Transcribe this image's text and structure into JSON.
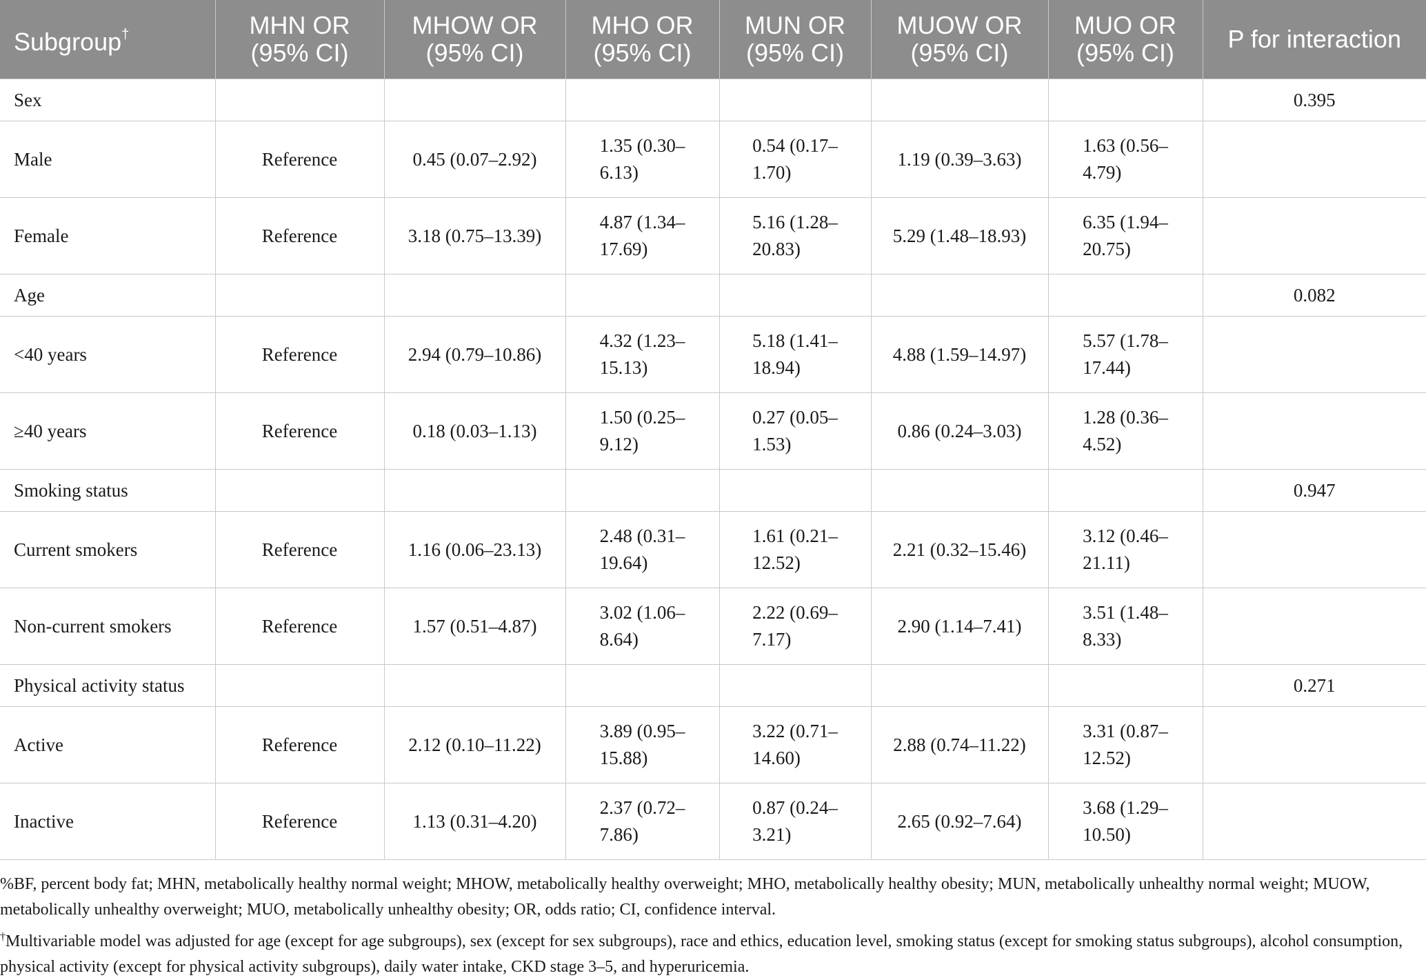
{
  "table": {
    "headers": [
      "Subgroup",
      "MHN OR\n(95% CI)",
      "MHOW OR\n(95% CI)",
      "MHO OR\n(95% CI)",
      "MUN OR\n(95% CI)",
      "MUOW OR\n(95% CI)",
      "MUO OR\n(95% CI)",
      "P for interaction"
    ],
    "subgroup_mark": "†",
    "rows": [
      {
        "type": "category",
        "label": "Sex",
        "p": "0.395"
      },
      {
        "type": "data",
        "label": "Male",
        "values": [
          "Reference",
          "0.45 (0.07–2.92)",
          "1.35 (0.30–\n6.13)",
          "0.54 (0.17–\n1.70)",
          "1.19 (0.39–3.63)",
          "1.63 (0.56–\n4.79)"
        ]
      },
      {
        "type": "data",
        "label": "Female",
        "values": [
          "Reference",
          "3.18 (0.75–13.39)",
          "4.87 (1.34–\n17.69)",
          "5.16 (1.28–\n20.83)",
          "5.29 (1.48–18.93)",
          "6.35 (1.94–\n20.75)"
        ]
      },
      {
        "type": "category",
        "label": "Age",
        "p": "0.082"
      },
      {
        "type": "data",
        "label": "<40 years",
        "values": [
          "Reference",
          "2.94 (0.79–10.86)",
          "4.32 (1.23–\n15.13)",
          "5.18 (1.41–\n18.94)",
          "4.88 (1.59–14.97)",
          "5.57 (1.78–\n17.44)"
        ]
      },
      {
        "type": "data",
        "label": "≥40 years",
        "values": [
          "Reference",
          "0.18 (0.03–1.13)",
          "1.50 (0.25–\n9.12)",
          "0.27 (0.05–\n1.53)",
          "0.86 (0.24–3.03)",
          "1.28 (0.36–\n4.52)"
        ]
      },
      {
        "type": "category",
        "label": "Smoking status",
        "p": "0.947"
      },
      {
        "type": "data",
        "label": "Current smokers",
        "values": [
          "Reference",
          "1.16 (0.06–23.13)",
          "2.48 (0.31–\n19.64)",
          "1.61 (0.21–\n12.52)",
          "2.21 (0.32–15.46)",
          "3.12 (0.46–\n21.11)"
        ]
      },
      {
        "type": "data",
        "label": "Non-current smokers",
        "values": [
          "Reference",
          "1.57 (0.51–4.87)",
          "3.02 (1.06–\n8.64)",
          "2.22 (0.69–\n7.17)",
          "2.90 (1.14–7.41)",
          "3.51 (1.48–\n8.33)"
        ]
      },
      {
        "type": "category",
        "label": "Physical activity status",
        "p": "0.271"
      },
      {
        "type": "data",
        "label": "Active",
        "values": [
          "Reference",
          "2.12 (0.10–11.22)",
          "3.89 (0.95–\n15.88)",
          "3.22 (0.71–\n14.60)",
          "2.88 (0.74–11.22)",
          "3.31 (0.87–\n12.52)"
        ]
      },
      {
        "type": "data",
        "label": "Inactive",
        "values": [
          "Reference",
          "1.13 (0.31–4.20)",
          "2.37 (0.72–\n7.86)",
          "0.87 (0.24–\n3.21)",
          "2.65 (0.92–7.64)",
          "3.68 (1.29–\n10.50)"
        ]
      }
    ]
  },
  "footnotes": {
    "abbreviations": "%BF, percent body fat; MHN, metabolically healthy normal weight; MHOW, metabolically healthy overweight; MHO, metabolically healthy obesity; MUN, metabolically unhealthy normal weight; MUOW, metabolically unhealthy overweight; MUO, metabolically unhealthy obesity; OR, odds ratio; CI, confidence interval.",
    "mark": "†",
    "model": "Multivariable model was adjusted for age (except for age subgroups), sex (except for sex subgroups), race and ethics, education level, smoking status (except for smoking status subgroups), alcohol consumption, physical activity (except for physical activity subgroups), daily water intake, CKD stage 3–5, and hyperuricemia."
  }
}
